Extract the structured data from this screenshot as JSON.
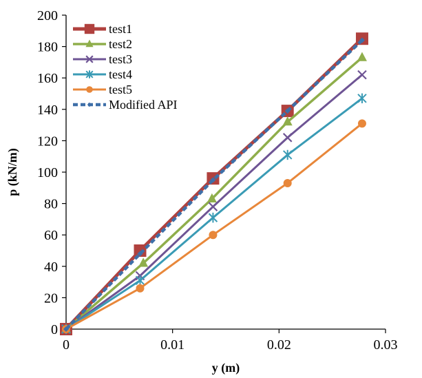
{
  "chart_data": {
    "type": "line",
    "xlabel": "y (m)",
    "ylabel": "p (kN/m)",
    "xlim": [
      0,
      0.03
    ],
    "ylim": [
      0,
      200
    ],
    "xticks": [
      0,
      0.01,
      0.02,
      0.03
    ],
    "xtick_labels": [
      "0",
      "0.01",
      "0.02",
      "0.03"
    ],
    "yticks": [
      0,
      20,
      40,
      60,
      80,
      100,
      120,
      140,
      160,
      180,
      200
    ],
    "ytick_labels": [
      "0",
      "20",
      "40",
      "60",
      "80",
      "100",
      "120",
      "140",
      "160",
      "180",
      "200"
    ],
    "grid": false,
    "legend_position": "top-left",
    "series": [
      {
        "name": "test1",
        "color": "#B0413E",
        "marker": "square",
        "x": [
          0,
          0.00695,
          0.0138,
          0.0208,
          0.0278
        ],
        "y": [
          0,
          50,
          96,
          139,
          185
        ]
      },
      {
        "name": "test2",
        "color": "#8FAE4B",
        "marker": "triangle",
        "x": [
          0,
          0.00725,
          0.0137,
          0.0208,
          0.0278
        ],
        "y": [
          0,
          42,
          83,
          132,
          173
        ]
      },
      {
        "name": "test3",
        "color": "#6E5494",
        "marker": "x",
        "x": [
          0,
          0.00695,
          0.0138,
          0.0208,
          0.0278
        ],
        "y": [
          0,
          34,
          78,
          122,
          162
        ]
      },
      {
        "name": "test4",
        "color": "#3A9BB5",
        "marker": "star",
        "x": [
          0,
          0.00695,
          0.0138,
          0.0208,
          0.0278
        ],
        "y": [
          0,
          31,
          71,
          111,
          147
        ]
      },
      {
        "name": "test5",
        "color": "#E8873A",
        "marker": "circle",
        "x": [
          0,
          0.00695,
          0.0138,
          0.0208,
          0.0278
        ],
        "y": [
          0,
          26,
          60,
          93,
          131
        ]
      },
      {
        "name": "Modified API",
        "color": "#3E6FA8",
        "marker": "diamond",
        "dashed": true,
        "x": [
          0,
          0.00695,
          0.0138,
          0.0208,
          0.0278
        ],
        "y": [
          0,
          48,
          95,
          139,
          184
        ]
      }
    ]
  }
}
